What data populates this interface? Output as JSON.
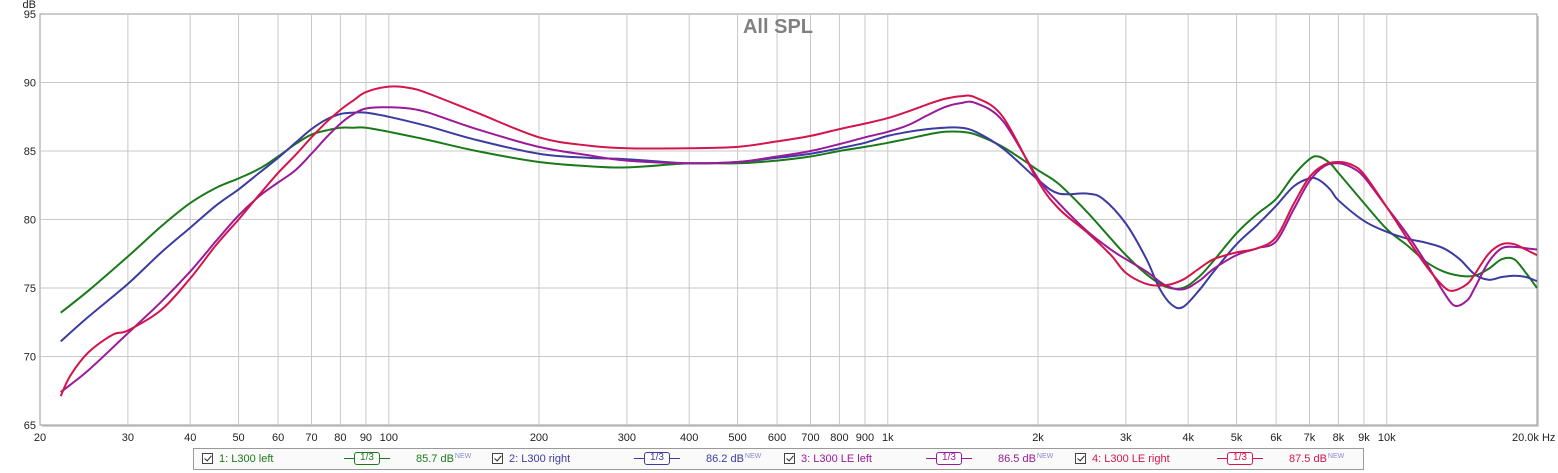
{
  "chart_data": {
    "type": "line",
    "title": "All SPL",
    "ylabel": "dB",
    "xlabel": "Hz",
    "xscale": "log",
    "xlim": [
      20,
      20000
    ],
    "ylim": [
      65,
      95
    ],
    "grid": true,
    "legend_position": "bottom",
    "y_ticks": [
      65,
      70,
      75,
      80,
      85,
      90,
      95
    ],
    "x_ticks": [
      {
        "v": 20,
        "label": "20"
      },
      {
        "v": 30,
        "label": "30"
      },
      {
        "v": 40,
        "label": "40"
      },
      {
        "v": 50,
        "label": "50"
      },
      {
        "v": 60,
        "label": "60"
      },
      {
        "v": 70,
        "label": "70"
      },
      {
        "v": 80,
        "label": "80"
      },
      {
        "v": 90,
        "label": "90"
      },
      {
        "v": 100,
        "label": "100"
      },
      {
        "v": 200,
        "label": "200"
      },
      {
        "v": 300,
        "label": "300"
      },
      {
        "v": 400,
        "label": "400"
      },
      {
        "v": 500,
        "label": "500"
      },
      {
        "v": 600,
        "label": "600"
      },
      {
        "v": 700,
        "label": "700"
      },
      {
        "v": 800,
        "label": "800"
      },
      {
        "v": 900,
        "label": "900"
      },
      {
        "v": 1000,
        "label": "1k"
      },
      {
        "v": 2000,
        "label": "2k"
      },
      {
        "v": 3000,
        "label": "3k"
      },
      {
        "v": 4000,
        "label": "4k"
      },
      {
        "v": 5000,
        "label": "5k"
      },
      {
        "v": 6000,
        "label": "6k"
      },
      {
        "v": 7000,
        "label": "7k"
      },
      {
        "v": 8000,
        "label": "8k"
      },
      {
        "v": 9000,
        "label": "9k"
      },
      {
        "v": 10000,
        "label": "10k"
      },
      {
        "v": 20000,
        "label": "20.0k Hz"
      }
    ],
    "series": [
      {
        "name": "1: L300 left",
        "color": "#1a7a1a",
        "smoothing": "1/3",
        "level": "85.7 dB",
        "points": [
          [
            22,
            73.2
          ],
          [
            25,
            74.8
          ],
          [
            30,
            77.3
          ],
          [
            35,
            79.5
          ],
          [
            40,
            81.2
          ],
          [
            45,
            82.3
          ],
          [
            50,
            83.0
          ],
          [
            55,
            83.7
          ],
          [
            60,
            84.6
          ],
          [
            65,
            85.5
          ],
          [
            70,
            86.2
          ],
          [
            75,
            86.5
          ],
          [
            80,
            86.7
          ],
          [
            85,
            86.7
          ],
          [
            90,
            86.7
          ],
          [
            100,
            86.4
          ],
          [
            120,
            85.8
          ],
          [
            150,
            85.0
          ],
          [
            200,
            84.2
          ],
          [
            250,
            83.9
          ],
          [
            300,
            83.8
          ],
          [
            400,
            84.1
          ],
          [
            500,
            84.1
          ],
          [
            600,
            84.3
          ],
          [
            700,
            84.6
          ],
          [
            800,
            85.0
          ],
          [
            900,
            85.3
          ],
          [
            1000,
            85.6
          ],
          [
            1100,
            85.9
          ],
          [
            1200,
            86.2
          ],
          [
            1300,
            86.4
          ],
          [
            1400,
            86.4
          ],
          [
            1500,
            86.2
          ],
          [
            1700,
            85.3
          ],
          [
            2000,
            83.6
          ],
          [
            2200,
            82.6
          ],
          [
            2500,
            80.6
          ],
          [
            2800,
            78.6
          ],
          [
            3000,
            77.4
          ],
          [
            3300,
            76.0
          ],
          [
            3600,
            75.1
          ],
          [
            3900,
            75.0
          ],
          [
            4200,
            75.8
          ],
          [
            4500,
            77.0
          ],
          [
            5000,
            79.0
          ],
          [
            5500,
            80.4
          ],
          [
            6000,
            81.5
          ],
          [
            6500,
            83.2
          ],
          [
            7000,
            84.4
          ],
          [
            7300,
            84.6
          ],
          [
            7700,
            84.1
          ],
          [
            8000,
            83.4
          ],
          [
            9000,
            81.2
          ],
          [
            10000,
            79.3
          ],
          [
            11000,
            78.1
          ],
          [
            12000,
            76.9
          ],
          [
            13000,
            76.2
          ],
          [
            14000,
            75.9
          ],
          [
            15000,
            75.9
          ],
          [
            16000,
            76.4
          ],
          [
            17000,
            77.1
          ],
          [
            18000,
            77.1
          ],
          [
            19000,
            76.1
          ],
          [
            20000,
            75.0
          ]
        ]
      },
      {
        "name": "2: L300 right",
        "color": "#3c3ca0",
        "smoothing": "1/3",
        "level": "86.2 dB",
        "points": [
          [
            22,
            71.1
          ],
          [
            25,
            72.9
          ],
          [
            30,
            75.3
          ],
          [
            35,
            77.6
          ],
          [
            40,
            79.4
          ],
          [
            45,
            81.0
          ],
          [
            50,
            82.2
          ],
          [
            55,
            83.4
          ],
          [
            60,
            84.5
          ],
          [
            65,
            85.6
          ],
          [
            70,
            86.6
          ],
          [
            75,
            87.3
          ],
          [
            80,
            87.7
          ],
          [
            85,
            87.8
          ],
          [
            90,
            87.8
          ],
          [
            100,
            87.5
          ],
          [
            120,
            86.8
          ],
          [
            150,
            85.8
          ],
          [
            200,
            84.8
          ],
          [
            250,
            84.5
          ],
          [
            300,
            84.4
          ],
          [
            400,
            84.1
          ],
          [
            500,
            84.2
          ],
          [
            600,
            84.5
          ],
          [
            700,
            84.8
          ],
          [
            800,
            85.2
          ],
          [
            900,
            85.6
          ],
          [
            1000,
            86.1
          ],
          [
            1100,
            86.4
          ],
          [
            1200,
            86.6
          ],
          [
            1300,
            86.7
          ],
          [
            1400,
            86.7
          ],
          [
            1500,
            86.4
          ],
          [
            1700,
            85.2
          ],
          [
            2000,
            82.9
          ],
          [
            2200,
            81.9
          ],
          [
            2500,
            81.9
          ],
          [
            2700,
            81.5
          ],
          [
            3000,
            79.7
          ],
          [
            3300,
            77.1
          ],
          [
            3500,
            75.0
          ],
          [
            3700,
            73.8
          ],
          [
            3900,
            73.6
          ],
          [
            4200,
            74.8
          ],
          [
            4500,
            76.2
          ],
          [
            5000,
            78.2
          ],
          [
            5500,
            79.6
          ],
          [
            6000,
            81.0
          ],
          [
            6500,
            82.4
          ],
          [
            7000,
            83.0
          ],
          [
            7300,
            82.9
          ],
          [
            7700,
            82.2
          ],
          [
            8000,
            81.4
          ],
          [
            9000,
            79.9
          ],
          [
            10000,
            79.1
          ],
          [
            11000,
            78.6
          ],
          [
            12000,
            78.3
          ],
          [
            13000,
            77.9
          ],
          [
            14000,
            77.1
          ],
          [
            15000,
            76.0
          ],
          [
            16000,
            75.6
          ],
          [
            17000,
            75.8
          ],
          [
            18000,
            75.9
          ],
          [
            19000,
            75.8
          ],
          [
            20000,
            75.5
          ]
        ]
      },
      {
        "name": "3: L300 LE left",
        "color": "#9a1a9a",
        "smoothing": "1/3",
        "level": "86.5 dB",
        "points": [
          [
            22,
            67.4
          ],
          [
            25,
            69.0
          ],
          [
            30,
            71.7
          ],
          [
            35,
            74.0
          ],
          [
            40,
            76.2
          ],
          [
            45,
            78.4
          ],
          [
            50,
            80.3
          ],
          [
            55,
            81.7
          ],
          [
            60,
            82.7
          ],
          [
            65,
            83.6
          ],
          [
            70,
            84.8
          ],
          [
            75,
            86.0
          ],
          [
            80,
            87.0
          ],
          [
            85,
            87.7
          ],
          [
            90,
            88.1
          ],
          [
            100,
            88.2
          ],
          [
            110,
            88.1
          ],
          [
            120,
            87.8
          ],
          [
            150,
            86.6
          ],
          [
            200,
            85.3
          ],
          [
            250,
            84.7
          ],
          [
            300,
            84.3
          ],
          [
            400,
            84.1
          ],
          [
            500,
            84.2
          ],
          [
            600,
            84.6
          ],
          [
            700,
            85.0
          ],
          [
            800,
            85.5
          ],
          [
            900,
            86.0
          ],
          [
            1000,
            86.4
          ],
          [
            1100,
            86.9
          ],
          [
            1200,
            87.6
          ],
          [
            1300,
            88.2
          ],
          [
            1400,
            88.5
          ],
          [
            1500,
            88.5
          ],
          [
            1700,
            87.2
          ],
          [
            2000,
            83.0
          ],
          [
            2200,
            81.2
          ],
          [
            2500,
            79.2
          ],
          [
            2800,
            77.8
          ],
          [
            3000,
            77.1
          ],
          [
            3300,
            76.2
          ],
          [
            3600,
            75.2
          ],
          [
            3900,
            74.9
          ],
          [
            4200,
            75.5
          ],
          [
            4500,
            76.4
          ],
          [
            5000,
            77.4
          ],
          [
            5500,
            77.9
          ],
          [
            6000,
            78.4
          ],
          [
            6500,
            80.7
          ],
          [
            7000,
            82.8
          ],
          [
            7500,
            83.9
          ],
          [
            8000,
            84.1
          ],
          [
            8500,
            83.8
          ],
          [
            9000,
            83.1
          ],
          [
            10000,
            80.9
          ],
          [
            11000,
            78.9
          ],
          [
            12000,
            76.8
          ],
          [
            13000,
            74.7
          ],
          [
            13700,
            73.7
          ],
          [
            14500,
            74.1
          ],
          [
            15000,
            75.0
          ],
          [
            16000,
            76.9
          ],
          [
            17000,
            77.9
          ],
          [
            18000,
            78.0
          ],
          [
            19000,
            77.9
          ],
          [
            20000,
            77.8
          ]
        ]
      },
      {
        "name": "4: L300 LE right",
        "color": "#d4144a",
        "smoothing": "1/3",
        "level": "87.5 dB",
        "points": [
          [
            22,
            67.1
          ],
          [
            23,
            68.6
          ],
          [
            25,
            70.3
          ],
          [
            28,
            71.6
          ],
          [
            30,
            71.9
          ],
          [
            35,
            73.4
          ],
          [
            40,
            75.7
          ],
          [
            45,
            78.1
          ],
          [
            50,
            80.0
          ],
          [
            55,
            81.8
          ],
          [
            60,
            83.4
          ],
          [
            65,
            84.7
          ],
          [
            70,
            86.0
          ],
          [
            75,
            87.1
          ],
          [
            80,
            88.0
          ],
          [
            85,
            88.7
          ],
          [
            90,
            89.3
          ],
          [
            100,
            89.7
          ],
          [
            110,
            89.6
          ],
          [
            120,
            89.2
          ],
          [
            150,
            87.8
          ],
          [
            200,
            86.0
          ],
          [
            250,
            85.4
          ],
          [
            300,
            85.2
          ],
          [
            400,
            85.2
          ],
          [
            500,
            85.3
          ],
          [
            600,
            85.7
          ],
          [
            700,
            86.1
          ],
          [
            800,
            86.6
          ],
          [
            900,
            87.0
          ],
          [
            1000,
            87.4
          ],
          [
            1100,
            87.9
          ],
          [
            1200,
            88.4
          ],
          [
            1300,
            88.8
          ],
          [
            1400,
            89.0
          ],
          [
            1500,
            88.9
          ],
          [
            1700,
            87.5
          ],
          [
            2000,
            82.8
          ],
          [
            2200,
            80.8
          ],
          [
            2500,
            79.1
          ],
          [
            2800,
            77.4
          ],
          [
            3000,
            76.1
          ],
          [
            3300,
            75.3
          ],
          [
            3600,
            75.2
          ],
          [
            3900,
            75.6
          ],
          [
            4200,
            76.4
          ],
          [
            4500,
            77.1
          ],
          [
            5000,
            77.6
          ],
          [
            5500,
            77.9
          ],
          [
            6000,
            78.7
          ],
          [
            6500,
            81.1
          ],
          [
            7000,
            83.1
          ],
          [
            7500,
            84.0
          ],
          [
            8000,
            84.2
          ],
          [
            8500,
            84.0
          ],
          [
            9000,
            83.3
          ],
          [
            10000,
            80.9
          ],
          [
            11000,
            78.6
          ],
          [
            12000,
            76.6
          ],
          [
            13000,
            75.1
          ],
          [
            13600,
            74.8
          ],
          [
            14500,
            75.3
          ],
          [
            15000,
            76.0
          ],
          [
            16000,
            77.5
          ],
          [
            17000,
            78.2
          ],
          [
            18000,
            78.2
          ],
          [
            19000,
            77.8
          ],
          [
            20000,
            77.4
          ]
        ]
      }
    ]
  }
}
